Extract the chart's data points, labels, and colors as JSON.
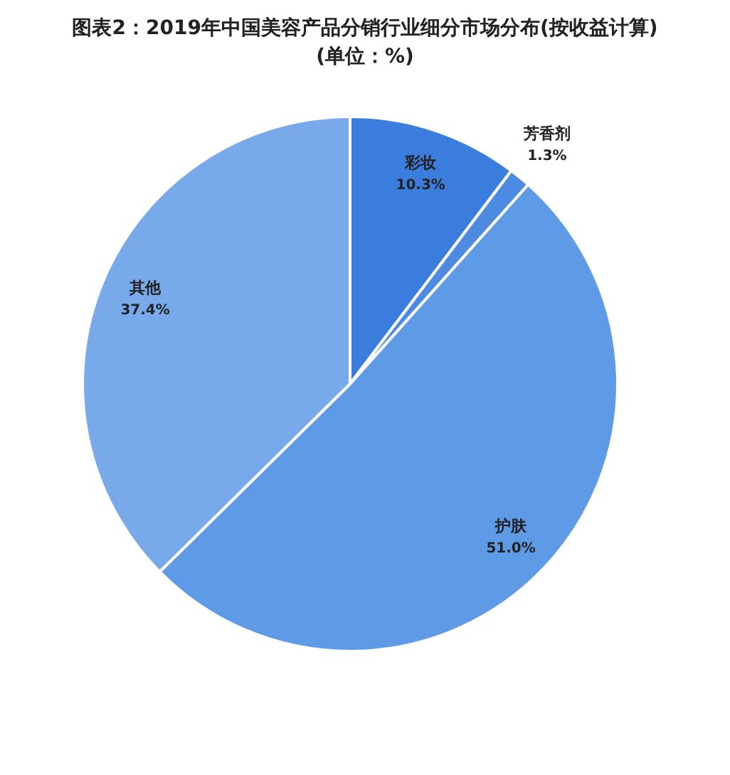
{
  "chart_data": {
    "type": "pie",
    "title": "图表2：2019年中国美容产品分销行业细分市场分布(按收益计算)",
    "subtitle": "(单位：%)",
    "categories": [
      "彩妆",
      "芳香剂",
      "护肤",
      "其他"
    ],
    "values": [
      10.3,
      1.3,
      51.0,
      37.4
    ],
    "colors": [
      "#3b7ddd",
      "#4d8be3",
      "#5f9ae7",
      "#78aaeb"
    ],
    "value_labels": [
      "10.3%",
      "1.3%",
      "51.0%",
      "37.4%"
    ]
  }
}
